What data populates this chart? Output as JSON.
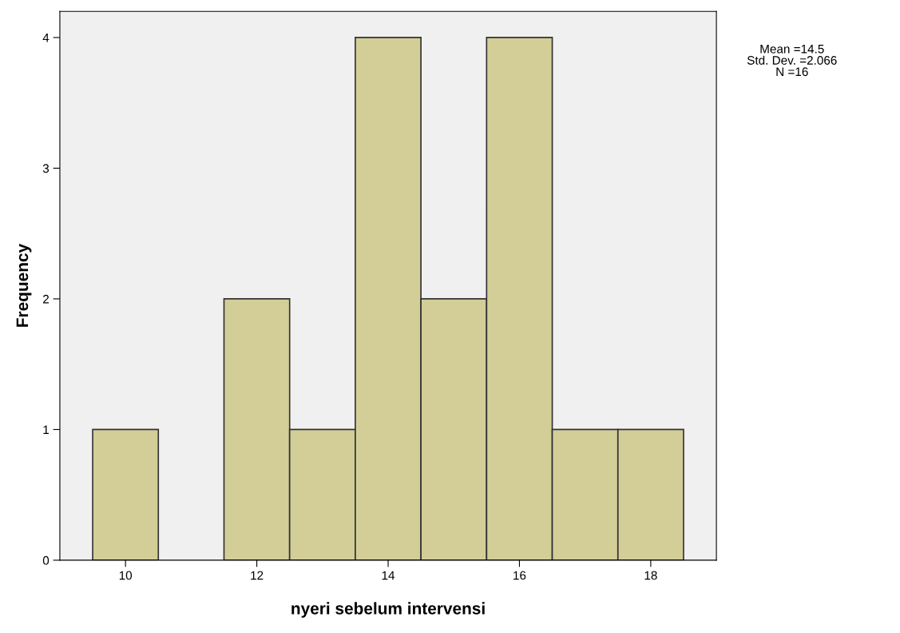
{
  "chart_data": {
    "type": "histogram",
    "xlabel": "nyeri sebelum intervensi",
    "ylabel": "Frequency",
    "bins": [
      9.5,
      10.5,
      11.5,
      12.5,
      13.5,
      14.5,
      15.5,
      16.5,
      17.5,
      18.5
    ],
    "values": [
      1,
      0,
      2,
      1,
      4,
      2,
      4,
      1,
      1
    ],
    "color": "#d3ce98",
    "xlim": [
      9,
      19
    ],
    "xticks": [
      10,
      12,
      14,
      16,
      18
    ],
    "ylim": [
      0,
      4.2
    ],
    "yticks": [
      0,
      1,
      2,
      3,
      4
    ],
    "grid": false,
    "annotations": [
      "Mean =14.5",
      "Std. Dev. =2.066",
      "N =16"
    ]
  }
}
